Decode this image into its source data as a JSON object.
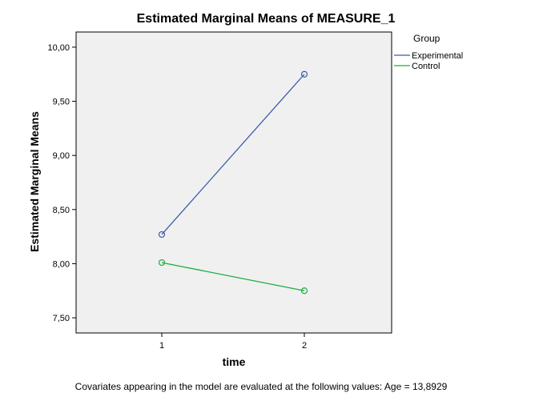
{
  "chart_data": {
    "type": "line",
    "title": "Estimated Marginal Means of MEASURE_1",
    "xlabel": "time",
    "ylabel": "Estimated Marginal Means",
    "categories": [
      "1",
      "2"
    ],
    "ylim": [
      7.36,
      10.14
    ],
    "yticks": [
      7.5,
      8.0,
      8.5,
      9.0,
      9.5,
      10.0
    ],
    "ytick_labels": [
      "7,50",
      "8,00",
      "8,50",
      "9,00",
      "9,50",
      "10,00"
    ],
    "grid": false,
    "legend_title": "Group",
    "legend_position": "right",
    "series": [
      {
        "name": "Experimental",
        "color": "#3b5ba9",
        "values": [
          8.27,
          9.75
        ]
      },
      {
        "name": "Control",
        "color": "#1dae3f",
        "values": [
          8.01,
          7.75
        ]
      }
    ],
    "footnote": "Covariates appearing in the model are evaluated at the following values: Age = 13,8929"
  },
  "colors": {
    "plot_background": "#f0f0f0",
    "axis": "#000000"
  }
}
